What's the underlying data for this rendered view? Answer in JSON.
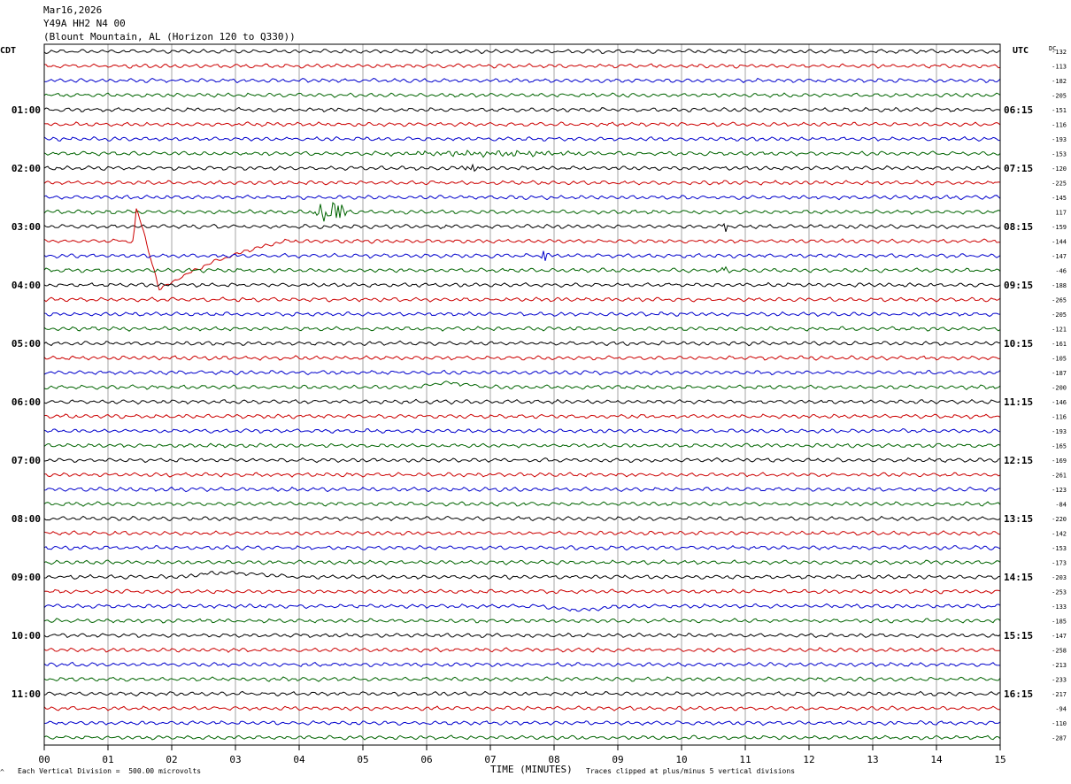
{
  "header": {
    "date": "Mar16,2026",
    "station": "Y49A HH2 N4 00",
    "location": "(Blount Mountain, AL (Horizon 120 to Q330))"
  },
  "axis_labels": {
    "left_tz": "CDT",
    "right_tz": "UTC",
    "dc": "DC",
    "x_title": "TIME (MINUTES)"
  },
  "footer": {
    "scale": "Each Vertical Division =  500.00 microvolts",
    "clip": "Traces clipped at plus/minus 5 vertical divisions",
    "corner_mark": "^"
  },
  "colors": {
    "trace_cycle": [
      "#000000",
      "#cc0000",
      "#0000cc",
      "#006400"
    ],
    "grid": "#808080",
    "frame": "#000000"
  },
  "chart_data": {
    "type": "line",
    "title": "Mar16,2026 Y49A HH2 N4 00 (Blount Mountain, AL (Horizon 120 to Q330))",
    "xlabel": "TIME (MINUTES)",
    "xlim": [
      0,
      15
    ],
    "x_ticks": [
      "00",
      "01",
      "02",
      "03",
      "04",
      "05",
      "06",
      "07",
      "08",
      "09",
      "10",
      "11",
      "12",
      "13",
      "14",
      "15"
    ],
    "trace_count": 48,
    "minutes_per_trace": 15,
    "left_hour_labels": [
      {
        "trace": 4,
        "label": "01:00"
      },
      {
        "trace": 8,
        "label": "02:00"
      },
      {
        "trace": 12,
        "label": "03:00"
      },
      {
        "trace": 16,
        "label": "04:00"
      },
      {
        "trace": 20,
        "label": "05:00"
      },
      {
        "trace": 24,
        "label": "06:00"
      },
      {
        "trace": 28,
        "label": "07:00"
      },
      {
        "trace": 32,
        "label": "08:00"
      },
      {
        "trace": 36,
        "label": "09:00"
      },
      {
        "trace": 40,
        "label": "10:00"
      },
      {
        "trace": 44,
        "label": "11:00"
      }
    ],
    "right_hour_labels": [
      {
        "trace": 4,
        "label": "06:15"
      },
      {
        "trace": 8,
        "label": "07:15"
      },
      {
        "trace": 12,
        "label": "08:15"
      },
      {
        "trace": 16,
        "label": "09:15"
      },
      {
        "trace": 20,
        "label": "10:15"
      },
      {
        "trace": 24,
        "label": "11:15"
      },
      {
        "trace": 28,
        "label": "12:15"
      },
      {
        "trace": 32,
        "label": "13:15"
      },
      {
        "trace": 36,
        "label": "14:15"
      },
      {
        "trace": 40,
        "label": "15:15"
      },
      {
        "trace": 44,
        "label": "16:15"
      }
    ],
    "dc_offsets": [
      "-132",
      "-113",
      "-182",
      "-205",
      "-151",
      "-116",
      "-193",
      "-153",
      "-120",
      "-225",
      "-145",
      "117",
      "-159",
      "-144",
      "-147",
      "-46",
      "-188",
      "-265",
      "-205",
      "-121",
      "-161",
      "-105",
      "-187",
      "-200",
      "-146",
      "-116",
      "-193",
      "-165",
      "-169",
      "-261",
      "-123",
      "-84",
      "-220",
      "-142",
      "-153",
      "-173",
      "-203",
      "-253",
      "-133",
      "-185",
      "-147",
      "-258",
      "-213",
      "-233",
      "-217",
      "-94",
      "-110",
      "-287"
    ],
    "events": [
      {
        "trace": 7,
        "x0": 5.0,
        "x1": 9.0,
        "kind": "bump",
        "amp": 2
      },
      {
        "trace": 8,
        "x0": 6.5,
        "x1": 6.9,
        "kind": "burst",
        "amp": 5
      },
      {
        "trace": 11,
        "x0": 4.2,
        "x1": 4.8,
        "kind": "burst",
        "amp": 12
      },
      {
        "trace": 12,
        "x0": 10.6,
        "x1": 10.75,
        "kind": "burst",
        "amp": 5
      },
      {
        "trace": 13,
        "x0": 1.4,
        "x1": 3.8,
        "kind": "swing",
        "amp": 55
      },
      {
        "trace": 14,
        "x0": 7.8,
        "x1": 7.95,
        "kind": "burst",
        "amp": 14
      },
      {
        "trace": 15,
        "x0": 10.5,
        "x1": 10.8,
        "kind": "burst",
        "amp": 3
      },
      {
        "trace": 23,
        "x0": 5.9,
        "x1": 7.0,
        "kind": "hump",
        "amp": 9
      },
      {
        "trace": 36,
        "x0": 2.2,
        "x1": 4.0,
        "kind": "hump",
        "amp": 9
      },
      {
        "trace": 38,
        "x0": 7.8,
        "x1": 9.0,
        "kind": "dip",
        "amp": 4
      }
    ]
  }
}
